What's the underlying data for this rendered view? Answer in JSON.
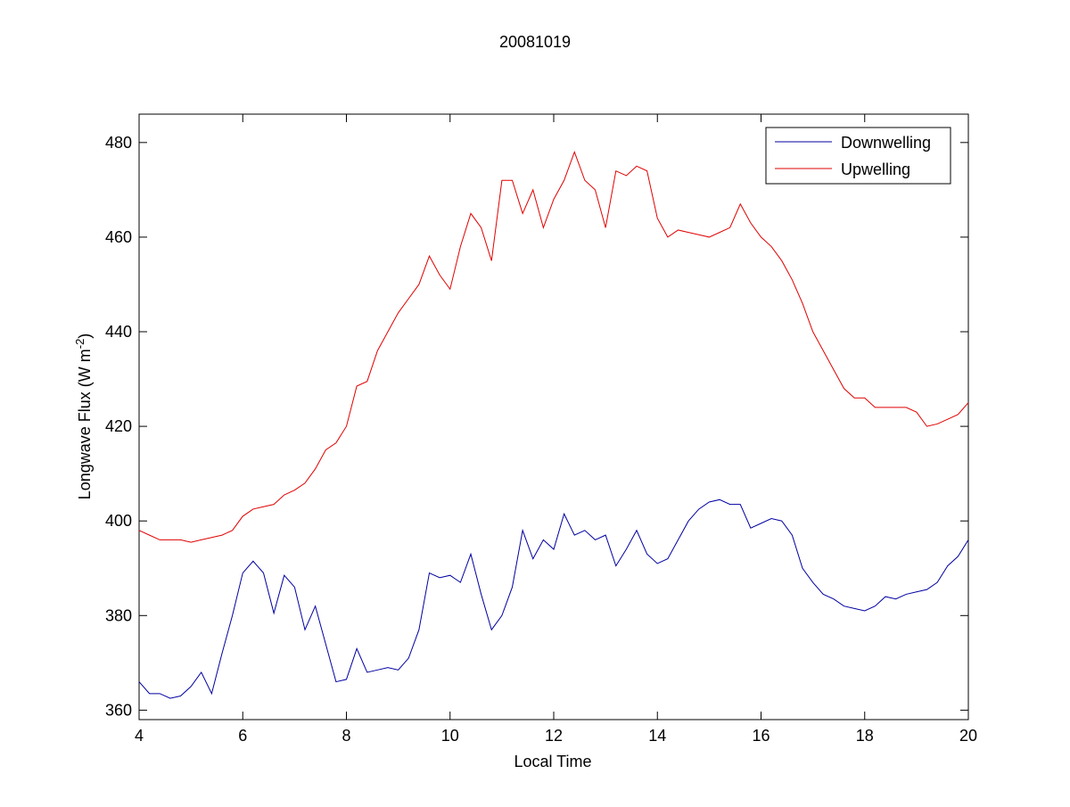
{
  "chart_data": {
    "type": "line",
    "title": "20081019",
    "x_label": "Local Time",
    "y_label": {
      "text": "Longwave Flux (W m",
      "superscript": "-2",
      "suffix": ")"
    },
    "x": [
      4.0,
      4.2,
      4.4,
      4.6,
      4.8,
      5.0,
      5.2,
      5.4,
      5.6,
      5.8,
      6.0,
      6.2,
      6.4,
      6.6,
      6.8,
      7.0,
      7.2,
      7.4,
      7.6,
      7.8,
      8.0,
      8.2,
      8.4,
      8.6,
      8.8,
      9.0,
      9.2,
      9.4,
      9.6,
      9.8,
      10.0,
      10.2,
      10.4,
      10.6,
      10.8,
      11.0,
      11.2,
      11.4,
      11.6,
      11.8,
      12.0,
      12.2,
      12.4,
      12.6,
      12.8,
      13.0,
      13.2,
      13.4,
      13.6,
      13.8,
      14.0,
      14.2,
      14.4,
      14.6,
      14.8,
      15.0,
      15.2,
      15.4,
      15.6,
      15.8,
      16.0,
      16.2,
      16.4,
      16.6,
      16.8,
      17.0,
      17.2,
      17.4,
      17.6,
      17.8,
      18.0,
      18.2,
      18.4,
      18.6,
      18.8,
      19.0,
      19.2,
      19.4,
      19.6,
      19.8,
      20.0
    ],
    "series": [
      {
        "name": "Downwelling",
        "color": "#0000a0",
        "values": [
          366,
          363.5,
          363.5,
          362.5,
          363,
          365,
          368,
          363.5,
          372,
          380,
          389,
          391.5,
          389,
          380.5,
          388.5,
          386,
          377,
          382,
          374,
          366,
          366.5,
          373,
          368,
          368.5,
          369,
          368.5,
          371,
          377,
          389,
          388,
          388.5,
          387,
          393,
          384.5,
          377,
          380,
          386,
          398,
          392,
          396,
          394,
          401.5,
          397,
          398,
          396,
          397,
          390.5,
          394,
          398,
          393,
          391,
          392,
          396,
          400,
          402.5,
          404,
          404.5,
          403.5,
          403.5,
          398.5,
          399.5,
          400.5,
          400,
          397,
          390,
          387,
          384.5,
          383.5,
          382,
          381.5,
          381,
          382,
          384,
          383.5,
          384.5,
          385,
          385.5,
          387,
          390.5,
          392.5,
          396
        ]
      },
      {
        "name": "Upwelling",
        "color": "#e00000",
        "values": [
          398,
          397,
          396,
          396,
          396,
          395.5,
          396,
          396.5,
          397,
          398,
          401,
          402.5,
          403,
          403.5,
          405.5,
          406.5,
          408,
          411,
          415,
          416.5,
          420,
          428.5,
          429.5,
          436,
          440,
          444,
          447,
          450,
          456,
          452,
          449,
          458,
          465,
          462,
          455,
          472,
          472,
          465,
          470,
          462,
          468,
          472,
          478,
          472,
          470,
          462,
          474,
          473,
          475,
          474,
          464,
          460,
          461.5,
          461,
          460.5,
          460,
          461,
          462,
          467,
          463,
          460,
          458,
          455,
          451,
          446,
          440,
          436,
          432,
          428,
          426,
          426,
          424,
          424,
          424,
          424,
          423,
          420,
          420.5,
          421.5,
          422.5,
          425
        ]
      }
    ],
    "xlim": [
      4,
      20
    ],
    "xticks": [
      4,
      6,
      8,
      10,
      12,
      14,
      16,
      18,
      20
    ],
    "ylim": [
      358,
      486
    ],
    "yticks": [
      360,
      380,
      400,
      420,
      440,
      460,
      480
    ],
    "grid": false,
    "legend": "top-right"
  }
}
